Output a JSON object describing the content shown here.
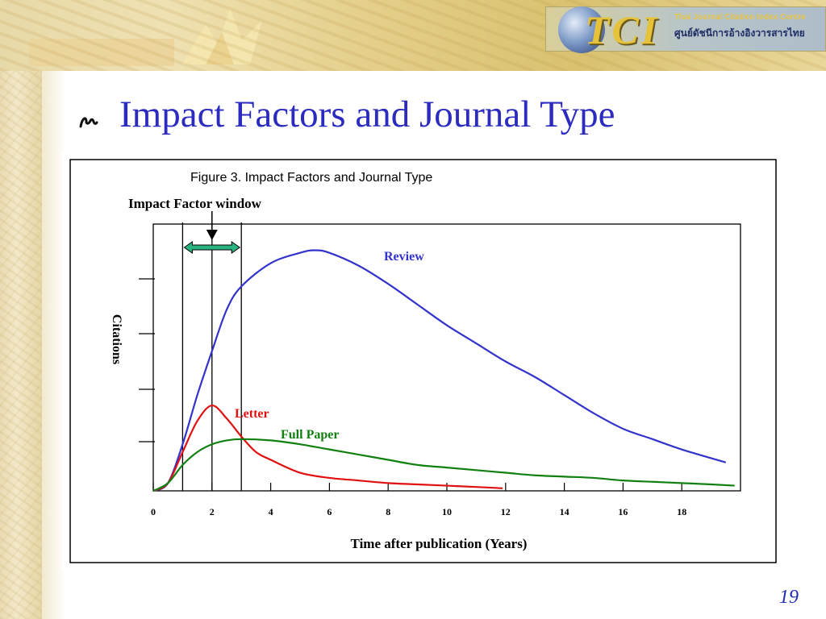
{
  "slide": {
    "title": "Impact Factors and Journal Type",
    "page_number": "19",
    "logo": {
      "brand": "TCI",
      "line1": "Thai Journal Citation Index Centre",
      "line2": "ศูนย์ดัชนีการอ้างอิงวารสารไทย"
    },
    "icons": {
      "bullet": "swirl-bullet-icon",
      "globe": "globe-icon"
    }
  },
  "colors": {
    "title": "#2b2bbf",
    "review": "#3333cc",
    "letter": "#e01010",
    "full_paper": "#118011",
    "arrow": "#2ab37f"
  },
  "chart_data": {
    "type": "line",
    "title": "Figure 3. Impact Factors and Journal Type",
    "xlabel": "Time after publication (Years)",
    "ylabel": "Citations",
    "xlim": [
      0,
      20
    ],
    "ylim": [
      0,
      100
    ],
    "x_ticks": [
      "0",
      "2",
      "4",
      "6",
      "8",
      "10",
      "12",
      "14",
      "16",
      "18"
    ],
    "window_annotation": {
      "label": "Impact Factor window",
      "x_start": 1,
      "x_end": 3
    },
    "series": [
      {
        "name": "Review",
        "x": [
          0,
          0.5,
          1,
          1.5,
          2,
          2.5,
          3,
          4,
          5,
          5.5,
          6,
          7,
          8,
          9,
          10,
          11,
          12,
          13,
          14,
          15,
          16,
          17,
          18,
          19.5
        ],
        "y": [
          0,
          3,
          18,
          37,
          54,
          70,
          79,
          88,
          92,
          93,
          92,
          87,
          80,
          72,
          64,
          57,
          50,
          44,
          37,
          30,
          24,
          20,
          16,
          11
        ]
      },
      {
        "name": "Letter",
        "x": [
          0,
          0.5,
          1,
          1.5,
          2,
          2.5,
          3,
          3.5,
          4,
          5,
          6,
          7,
          8,
          9,
          10,
          11,
          11.9
        ],
        "y": [
          0,
          3,
          15,
          27,
          33,
          28,
          21,
          15,
          12,
          7,
          5,
          4,
          3,
          2.5,
          2,
          1.5,
          1
        ]
      },
      {
        "name": "Full Paper",
        "x": [
          0,
          0.5,
          1,
          1.5,
          2,
          2.5,
          3,
          4,
          5,
          6,
          7,
          8,
          9,
          10,
          11,
          12,
          13,
          14,
          15,
          16,
          17,
          18,
          19,
          19.8
        ],
        "y": [
          0,
          3,
          10,
          15,
          18,
          19.5,
          20,
          19.5,
          18,
          16,
          14,
          12,
          10,
          9,
          8,
          7,
          6,
          5.5,
          5,
          4,
          3.5,
          3,
          2.5,
          2
        ]
      }
    ]
  }
}
